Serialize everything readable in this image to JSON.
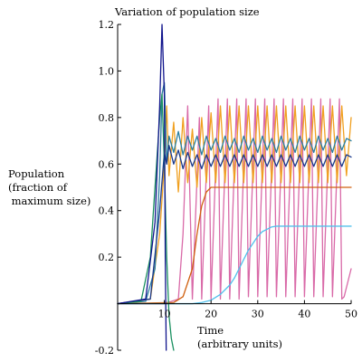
{
  "chart_data": {
    "type": "line",
    "title": "Variation of population size",
    "ylabel_lines": [
      "Population",
      "(fraction of",
      " maximum size)"
    ],
    "xlabel_lines": [
      "Time",
      "(arbitrary units)"
    ],
    "xlim": [
      0,
      50
    ],
    "ylim": [
      -0.2,
      1.2
    ],
    "x_ticks": [
      10,
      20,
      30,
      40,
      50
    ],
    "y_ticks": [
      -0.2,
      0.2,
      0.4,
      0.6,
      0.8,
      1.0,
      1.2
    ],
    "x_tick_labels": [
      "10",
      "20",
      "30",
      "40",
      "50"
    ],
    "y_tick_labels": [
      "-0.2",
      "0.2",
      "0.4",
      "0.6",
      "0.8",
      "1.0",
      "1.2"
    ],
    "grid": false,
    "series": [
      {
        "color": "#d96aa8",
        "x": [
          0,
          10,
          13,
          14,
          15,
          16,
          17.5,
          18,
          19.5,
          20,
          21.5,
          22,
          23.5,
          24,
          25.5,
          26,
          27.5,
          28,
          29.5,
          30,
          31.5,
          32,
          33.5,
          34,
          35.5,
          36,
          37.5,
          38,
          39.5,
          40,
          41.5,
          42,
          43.5,
          44,
          45.5,
          46,
          47.5,
          48,
          48.5,
          50
        ],
        "y": [
          0,
          0,
          0.02,
          0.3,
          0.85,
          0.02,
          0.8,
          0.02,
          0.85,
          0.02,
          0.88,
          0.02,
          0.88,
          0.02,
          0.88,
          0.02,
          0.88,
          0.03,
          0.88,
          0.03,
          0.88,
          0.03,
          0.88,
          0.03,
          0.88,
          0.03,
          0.88,
          0.03,
          0.88,
          0.03,
          0.88,
          0.03,
          0.88,
          0.03,
          0.88,
          0.03,
          0.88,
          0.02,
          0.03,
          0.15
        ]
      },
      {
        "color": "#f0a020",
        "x": [
          0,
          7,
          9,
          10,
          10.5,
          11,
          12,
          13,
          14,
          15,
          16,
          17,
          18,
          19,
          20,
          21,
          22,
          23,
          24,
          25,
          26,
          27,
          28,
          29,
          30,
          31,
          32,
          33,
          34,
          35,
          36,
          37,
          38,
          39,
          40,
          41,
          42,
          43,
          44,
          45,
          46,
          47,
          48,
          49,
          50
        ],
        "y": [
          0,
          0.02,
          0.3,
          0.6,
          0.85,
          0.55,
          0.78,
          0.48,
          0.8,
          0.52,
          0.75,
          0.5,
          0.8,
          0.52,
          0.82,
          0.52,
          0.85,
          0.52,
          0.85,
          0.52,
          0.85,
          0.52,
          0.85,
          0.52,
          0.85,
          0.52,
          0.85,
          0.52,
          0.85,
          0.52,
          0.85,
          0.52,
          0.85,
          0.52,
          0.85,
          0.52,
          0.85,
          0.52,
          0.85,
          0.52,
          0.85,
          0.52,
          0.85,
          0.55,
          0.8
        ]
      },
      {
        "color": "#2a7fa0",
        "x": [
          0,
          6,
          8,
          9,
          9.5,
          10,
          10.5,
          11,
          12,
          13,
          14,
          15,
          16,
          17,
          18,
          19,
          20,
          21,
          22,
          23,
          24,
          25,
          26,
          27,
          28,
          29,
          30,
          31,
          32,
          33,
          34,
          35,
          36,
          37,
          38,
          39,
          40,
          41,
          42,
          43,
          44,
          45,
          46,
          47,
          48,
          49,
          50
        ],
        "y": [
          0,
          0.01,
          0.15,
          0.55,
          0.9,
          0.95,
          0.6,
          0.72,
          0.65,
          0.74,
          0.64,
          0.72,
          0.66,
          0.72,
          0.64,
          0.72,
          0.66,
          0.71,
          0.65,
          0.72,
          0.66,
          0.71,
          0.65,
          0.72,
          0.66,
          0.71,
          0.65,
          0.72,
          0.66,
          0.71,
          0.65,
          0.72,
          0.66,
          0.71,
          0.65,
          0.72,
          0.66,
          0.71,
          0.65,
          0.72,
          0.66,
          0.71,
          0.65,
          0.72,
          0.66,
          0.71,
          0.7
        ]
      },
      {
        "color": "#1a3a8c",
        "x": [
          0,
          7,
          9,
          10,
          10.5,
          11,
          12,
          13,
          14,
          15,
          16,
          17,
          18,
          19,
          20,
          21,
          22,
          23,
          24,
          25,
          26,
          27,
          28,
          29,
          30,
          31,
          32,
          33,
          34,
          35,
          36,
          37,
          38,
          39,
          40,
          41,
          42,
          43,
          44,
          45,
          46,
          47,
          48,
          49,
          50
        ],
        "y": [
          0,
          0.02,
          0.4,
          0.65,
          0.6,
          0.68,
          0.6,
          0.66,
          0.58,
          0.65,
          0.59,
          0.64,
          0.58,
          0.64,
          0.59,
          0.64,
          0.59,
          0.64,
          0.59,
          0.64,
          0.59,
          0.64,
          0.59,
          0.64,
          0.59,
          0.64,
          0.59,
          0.64,
          0.59,
          0.64,
          0.59,
          0.64,
          0.59,
          0.64,
          0.59,
          0.64,
          0.59,
          0.64,
          0.59,
          0.64,
          0.59,
          0.64,
          0.59,
          0.64,
          0.63
        ]
      },
      {
        "color": "#d06010",
        "x": [
          0,
          12,
          14,
          16,
          17,
          18,
          19,
          20,
          22,
          25,
          30,
          40,
          50
        ],
        "y": [
          0,
          0.005,
          0.03,
          0.15,
          0.3,
          0.42,
          0.48,
          0.5,
          0.5,
          0.5,
          0.5,
          0.5,
          0.5
        ]
      },
      {
        "color": "#50c0ec",
        "x": [
          0,
          16,
          18,
          20,
          22,
          24,
          25,
          26,
          27,
          28,
          29,
          30,
          31,
          32,
          33,
          34,
          36,
          40,
          50
        ],
        "y": [
          0,
          0,
          0.005,
          0.015,
          0.04,
          0.08,
          0.11,
          0.15,
          0.19,
          0.23,
          0.26,
          0.29,
          0.31,
          0.32,
          0.33,
          0.333,
          0.333,
          0.333,
          0.333
        ]
      },
      {
        "color": "#1a9060",
        "x": [
          0,
          5,
          7,
          8,
          9,
          9.5,
          10,
          10.5,
          11,
          11.5,
          12
        ],
        "y": [
          0,
          0.01,
          0.2,
          0.5,
          0.8,
          0.9,
          0.6,
          0.2,
          -0.05,
          -0.15,
          -0.2
        ]
      },
      {
        "color": "#10148c",
        "x": [
          0,
          6,
          8,
          9,
          9.5,
          10,
          10.2,
          10.4
        ],
        "y": [
          0,
          0.02,
          0.35,
          0.85,
          1.2,
          0.9,
          0.2,
          -0.2
        ]
      }
    ]
  }
}
